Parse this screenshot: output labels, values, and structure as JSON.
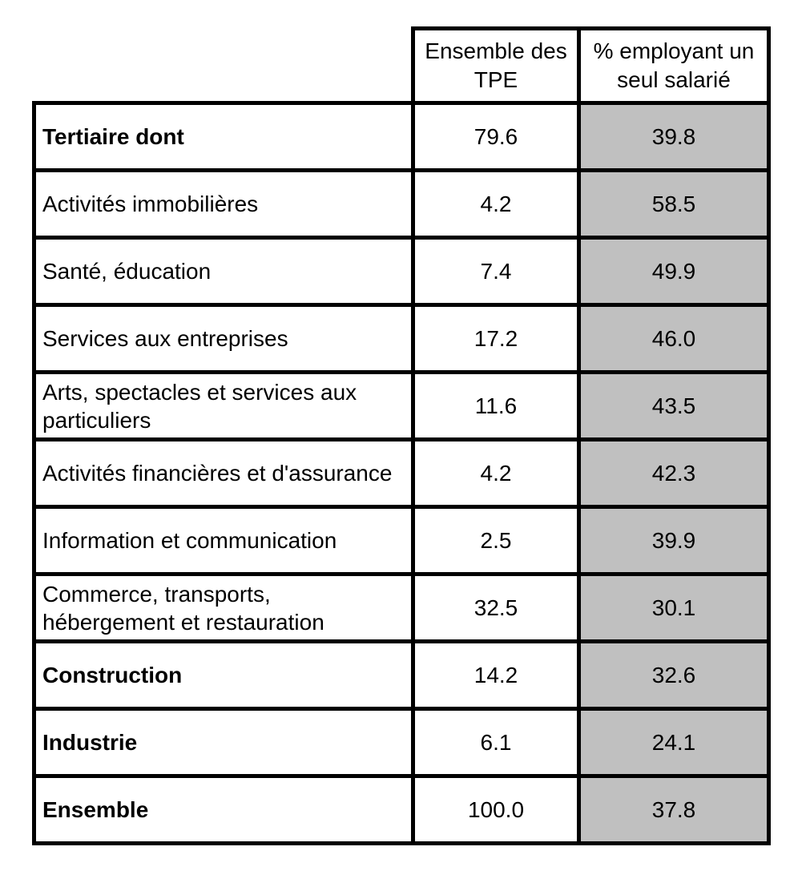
{
  "colors": {
    "border": "#000000",
    "text": "#000000",
    "cell_bg": "#ffffff",
    "shaded_column_bg": "#c0c0c0"
  },
  "chart_data": {
    "type": "table",
    "columns": [
      "",
      "Ensemble des TPE",
      "% employant un seul salarié"
    ],
    "shaded_column": "% employant un seul salarié",
    "rows": [
      {
        "label": "Tertiaire dont",
        "bold": true,
        "ensemble_des_tpe": "79.6",
        "pct_employant_un_seul_salarie": "39.8"
      },
      {
        "label": "Activités immobilières",
        "bold": false,
        "ensemble_des_tpe": "4.2",
        "pct_employant_un_seul_salarie": "58.5"
      },
      {
        "label": "Santé, éducation",
        "bold": false,
        "ensemble_des_tpe": "7.4",
        "pct_employant_un_seul_salarie": "49.9"
      },
      {
        "label": "Services aux entreprises",
        "bold": false,
        "ensemble_des_tpe": "17.2",
        "pct_employant_un_seul_salarie": "46.0"
      },
      {
        "label": "Arts, spectacles et services aux particuliers",
        "bold": false,
        "ensemble_des_tpe": "11.6",
        "pct_employant_un_seul_salarie": "43.5"
      },
      {
        "label": "Activités financières et d'assurance",
        "bold": false,
        "ensemble_des_tpe": "4.2",
        "pct_employant_un_seul_salarie": "42.3"
      },
      {
        "label": "Information et communication",
        "bold": false,
        "ensemble_des_tpe": "2.5",
        "pct_employant_un_seul_salarie": "39.9"
      },
      {
        "label": "Commerce, transports, hébergement et restauration",
        "bold": false,
        "ensemble_des_tpe": "32.5",
        "pct_employant_un_seul_salarie": "30.1"
      },
      {
        "label": "Construction",
        "bold": true,
        "ensemble_des_tpe": "14.2",
        "pct_employant_un_seul_salarie": "32.6"
      },
      {
        "label": "Industrie",
        "bold": true,
        "ensemble_des_tpe": "6.1",
        "pct_employant_un_seul_salarie": "24.1"
      },
      {
        "label": "Ensemble",
        "bold": true,
        "ensemble_des_tpe": "100.0",
        "pct_employant_un_seul_salarie": "37.8"
      }
    ]
  }
}
